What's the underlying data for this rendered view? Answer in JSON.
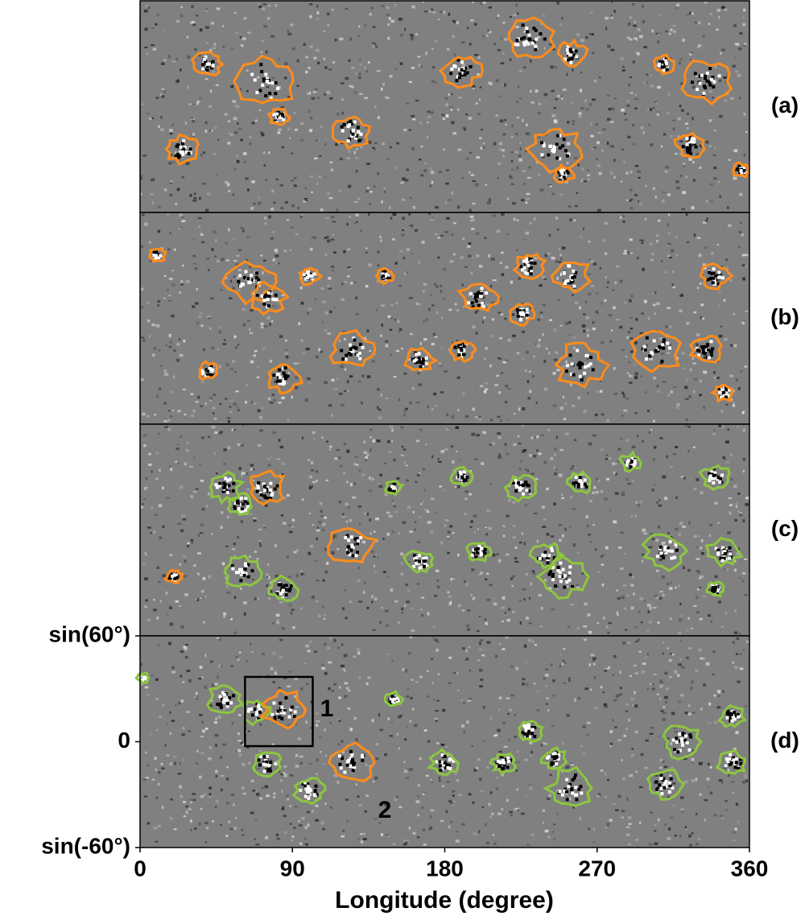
{
  "chart_data": {
    "type": "magnetogram",
    "xlabel": "Longitude (degree)",
    "xlim": [
      0,
      360
    ],
    "xticks": [
      0,
      90,
      180,
      270,
      360
    ],
    "ylim": [
      -0.866,
      0.866
    ],
    "yticks": [
      {
        "value": 0.866,
        "label": "sin(60°)"
      },
      0,
      {
        "value": -0.866,
        "label": "sin(-60°)"
      }
    ],
    "panels": [
      "(a)",
      "(b)",
      "(c)",
      "(d)"
    ],
    "annotations": [
      "1",
      "2"
    ]
  }
}
